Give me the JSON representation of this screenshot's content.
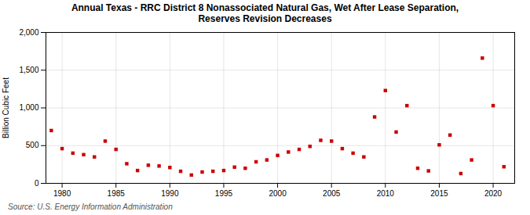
{
  "chart_data": {
    "type": "scatter",
    "title": "Annual Texas - RRC District 8 Nonassociated Natural Gas, Wet After Lease Separation,\nReserves Revision Decreases",
    "ylabel": "Billion Cubic Feet",
    "annotation": "Source: U.S. Energy Information Administration",
    "x": [
      1979,
      1980,
      1981,
      1982,
      1983,
      1984,
      1985,
      1986,
      1987,
      1988,
      1989,
      1990,
      1991,
      1992,
      1993,
      1994,
      1995,
      1996,
      1997,
      1998,
      1999,
      2000,
      2001,
      2002,
      2003,
      2004,
      2005,
      2006,
      2007,
      2008,
      2009,
      2010,
      2011,
      2012,
      2013,
      2014,
      2015,
      2016,
      2017,
      2018,
      2019,
      2020,
      2021
    ],
    "values": [
      700,
      460,
      400,
      380,
      350,
      560,
      450,
      260,
      170,
      240,
      230,
      210,
      160,
      110,
      150,
      160,
      170,
      215,
      200,
      285,
      310,
      370,
      415,
      450,
      490,
      570,
      560,
      460,
      400,
      350,
      880,
      1230,
      680,
      1030,
      200,
      165,
      510,
      640,
      130,
      310,
      1660,
      1030,
      220
    ],
    "color": "#cc0000",
    "marker": "square",
    "xlim": [
      1978.5,
      2022
    ],
    "xticks": [
      1980,
      1985,
      1990,
      1995,
      2000,
      2005,
      2010,
      2015,
      2020
    ],
    "ylim": [
      0,
      2000
    ],
    "yticks": [
      0,
      500,
      {
        "value": 1000,
        "label": "1,000"
      },
      {
        "value": 1500,
        "label": "1,500"
      },
      {
        "value": 2000,
        "label": "2,000"
      }
    ],
    "grid": true
  }
}
